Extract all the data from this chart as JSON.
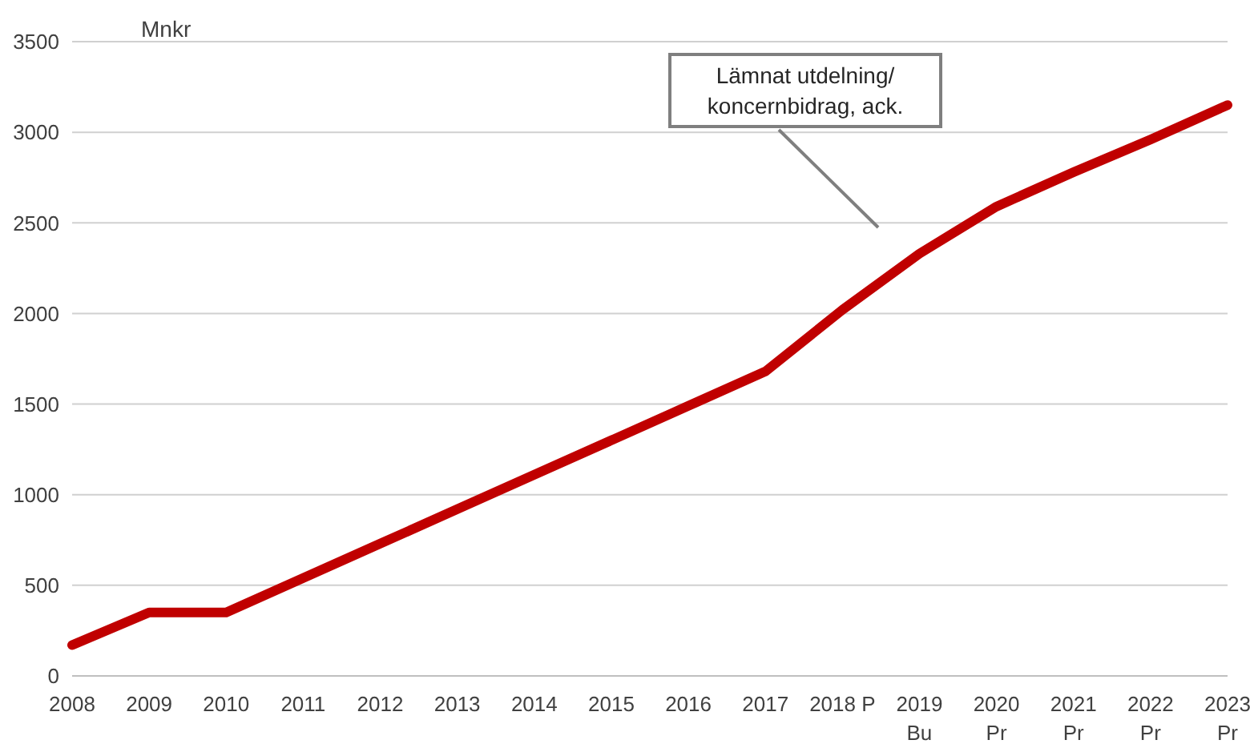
{
  "chart_data": {
    "type": "line",
    "ylabel": "Mnkr",
    "categories": [
      "2008",
      "2009",
      "2010",
      "2011",
      "2012",
      "2013",
      "2014",
      "2015",
      "2016",
      "2017",
      "2018 P",
      "2019\nBu",
      "2020\nPr",
      "2021\nPr",
      "2022\nPr",
      "2023\nPr"
    ],
    "series": [
      {
        "color": "#c00000",
        "values": [
          170,
          350,
          350,
          540,
          730,
          920,
          1110,
          1300,
          1490,
          1680,
          2020,
          2330,
          2590,
          2780,
          2960,
          3150
        ]
      }
    ],
    "ylim": [
      0,
      3500
    ],
    "yticks": [
      0,
      500,
      1000,
      1500,
      2000,
      2500,
      3000,
      3500
    ],
    "grid": "y",
    "marker": "none",
    "line_style": "solid",
    "annotations": [
      "Lämnat utdelning/\nkoncernbidrag, ack."
    ]
  }
}
